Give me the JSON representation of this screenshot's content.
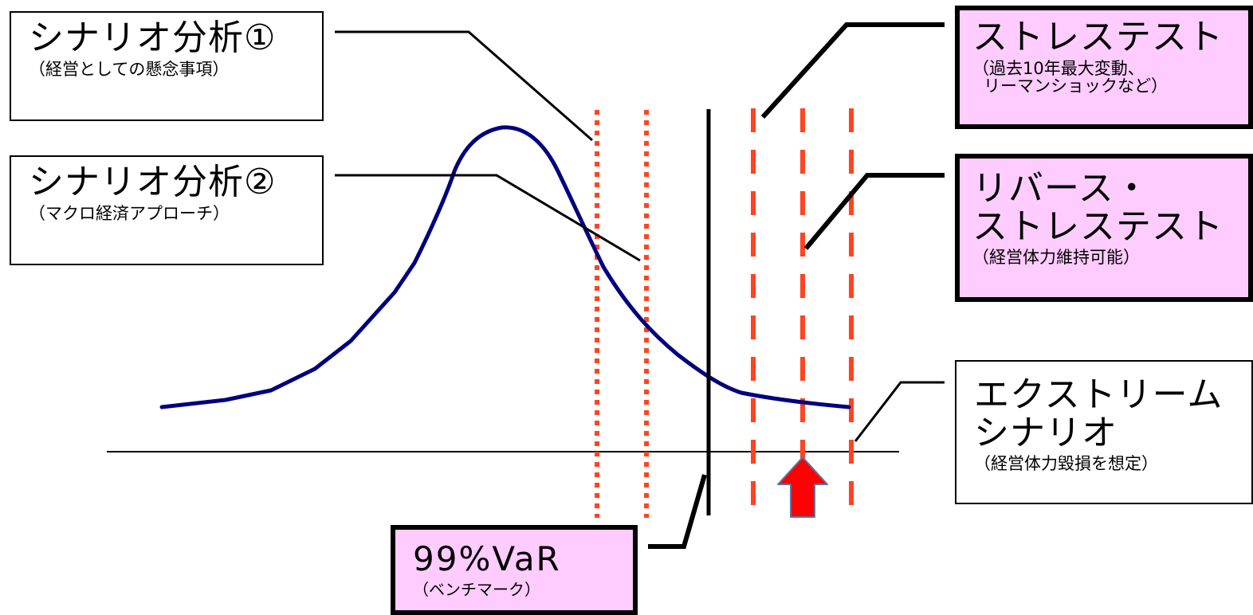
{
  "colors": {
    "curve": "#00007f",
    "dashed_lines": "#ff4422",
    "arrow_fill": "#ff0000",
    "arrow_stroke": "#5b74a8",
    "pink_box": "#ffccff"
  },
  "labels": {
    "scenario1": {
      "title": "シナリオ分析①",
      "subtitle": "（経営としての懸念事項）"
    },
    "scenario2": {
      "title": "シナリオ分析②",
      "subtitle": "（マクロ経済アプローチ）"
    },
    "stress_test": {
      "title": "ストレステスト",
      "subtitle_line1": "（過去10年最大変動、",
      "subtitle_line2": "リーマンショックなど）"
    },
    "reverse_stress_test": {
      "title_line1": "リバース・",
      "title_line2": "ストレステスト",
      "subtitle": "（経営体力維持可能）"
    },
    "extreme_scenario": {
      "title_line1": "エクストリーム",
      "title_line2": "シナリオ",
      "subtitle": "（経営体力毀損を想定）"
    },
    "var_benchmark": {
      "title": "99%VaR",
      "subtitle": "（ベンチマーク）"
    }
  }
}
